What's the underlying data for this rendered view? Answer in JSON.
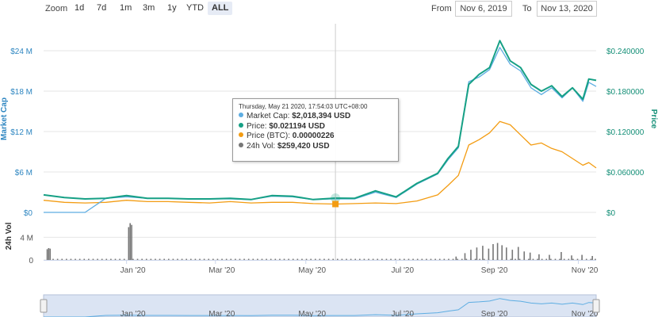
{
  "toolbar": {
    "zoom_label": "Zoom",
    "zoom_buttons": [
      "1d",
      "7d",
      "1m",
      "3m",
      "1y",
      "YTD",
      "ALL"
    ],
    "active_zoom": "ALL",
    "from_label": "From",
    "from_value": "Nov 6, 2019",
    "to_label": "To",
    "to_value": "Nov 13, 2020"
  },
  "tooltip": {
    "header": "Thursday, May 21 2020, 17:54:03 UTC+08:00",
    "rows": [
      {
        "label": "Market Cap:",
        "value": "$2,018,394 USD"
      },
      {
        "label": "Price:",
        "value": "$0.021194 USD"
      },
      {
        "label": "Price (BTC):",
        "value": "0.00000226"
      },
      {
        "label": "24h Vol:",
        "value": "$259,420 USD"
      }
    ]
  },
  "colors": {
    "market_cap": "#5dade2",
    "price": "#16a085",
    "price_btc": "#f39c12",
    "volume": "#777777",
    "navigator_fill": "#dbe4f3"
  },
  "chart_data": {
    "type": "line",
    "x_tick_labels": [
      "Jan '20",
      "Mar '20",
      "May '20",
      "Jul '20",
      "Sep '20",
      "Nov '20"
    ],
    "nav_tick_labels": [
      "Jan '20",
      "Mar '20",
      "May '20",
      "Jul '20",
      "Sep '20",
      "Nov '20"
    ],
    "x": [
      "2019-11-06",
      "2019-11-20",
      "2019-12-04",
      "2019-12-18",
      "2020-01-01",
      "2020-01-15",
      "2020-01-29",
      "2020-02-12",
      "2020-02-26",
      "2020-03-11",
      "2020-03-25",
      "2020-04-08",
      "2020-04-22",
      "2020-05-06",
      "2020-05-21",
      "2020-06-03",
      "2020-06-17",
      "2020-07-01",
      "2020-07-15",
      "2020-07-29",
      "2020-08-05",
      "2020-08-12",
      "2020-08-19",
      "2020-08-26",
      "2020-09-02",
      "2020-09-09",
      "2020-09-16",
      "2020-09-23",
      "2020-09-30",
      "2020-10-07",
      "2020-10-14",
      "2020-10-21",
      "2020-10-28",
      "2020-11-04",
      "2020-11-08",
      "2020-11-13"
    ],
    "series": [
      {
        "name": "Market Cap",
        "axis": "left",
        "values": [
          0,
          0,
          0,
          2.1,
          2.3,
          2.1,
          2.1,
          2.0,
          2.0,
          2.0,
          1.9,
          2.4,
          2.3,
          1.9,
          2.02,
          2.0,
          3.0,
          2.2,
          4.2,
          5.7,
          7.8,
          9.6,
          19.4,
          20.1,
          21.2,
          24.5,
          22.0,
          21.0,
          18.5,
          17.5,
          18.5,
          17.0,
          18.5,
          16.5,
          19.3,
          18.7
        ]
      },
      {
        "name": "Price",
        "axis": "right",
        "values": [
          0.026,
          0.022,
          0.02,
          0.021,
          0.025,
          0.021,
          0.021,
          0.02,
          0.02,
          0.021,
          0.019,
          0.025,
          0.024,
          0.019,
          0.021194,
          0.021,
          0.032,
          0.023,
          0.043,
          0.058,
          0.08,
          0.098,
          0.19,
          0.205,
          0.215,
          0.255,
          0.225,
          0.215,
          0.19,
          0.18,
          0.188,
          0.172,
          0.185,
          0.168,
          0.198,
          0.196
        ]
      },
      {
        "name": "Price (BTC)",
        "axis": "right",
        "values": [
          0.018,
          0.015,
          0.014,
          0.015,
          0.018,
          0.016,
          0.016,
          0.015,
          0.014,
          0.016,
          0.014,
          0.015,
          0.015,
          0.013,
          0.0124,
          0.013,
          0.014,
          0.013,
          0.017,
          0.026,
          0.04,
          0.055,
          0.1,
          0.108,
          0.118,
          0.135,
          0.13,
          0.115,
          0.1,
          0.103,
          0.095,
          0.09,
          0.08,
          0.07,
          0.074,
          0.066
        ]
      }
    ],
    "left_axis": {
      "label": "Market Cap",
      "ticks": [
        "$0",
        "$6 M",
        "$12 M",
        "$18 M",
        "$24 M"
      ],
      "range": [
        0,
        28
      ]
    },
    "right_axis": {
      "label": "Price",
      "ticks": [
        "$0",
        "$0.060000",
        "$0.120000",
        "$0.180000",
        "$0.240000"
      ],
      "range": [
        0,
        0.28
      ]
    },
    "volume": {
      "label": "24h Vol",
      "ticks": [
        "0",
        "4 M"
      ],
      "range": [
        0,
        7
      ],
      "bars": [
        {
          "x": "2019-11-08",
          "value": 1.9
        },
        {
          "x": "2019-11-09",
          "value": 2.1
        },
        {
          "x": "2019-11-10",
          "value": 2.0
        },
        {
          "x": "2020-01-02",
          "value": 5.8
        },
        {
          "x": "2020-01-03",
          "value": 6.5
        },
        {
          "x": "2020-01-04",
          "value": 6.2
        },
        {
          "x": "2020-08-10",
          "value": 0.6
        },
        {
          "x": "2020-08-16",
          "value": 1.2
        },
        {
          "x": "2020-08-20",
          "value": 1.8
        },
        {
          "x": "2020-08-24",
          "value": 2.2
        },
        {
          "x": "2020-08-28",
          "value": 2.5
        },
        {
          "x": "2020-09-01",
          "value": 2.0
        },
        {
          "x": "2020-09-04",
          "value": 2.8
        },
        {
          "x": "2020-09-07",
          "value": 3.0
        },
        {
          "x": "2020-09-10",
          "value": 2.6
        },
        {
          "x": "2020-09-13",
          "value": 2.2
        },
        {
          "x": "2020-09-17",
          "value": 1.8
        },
        {
          "x": "2020-09-21",
          "value": 2.3
        },
        {
          "x": "2020-09-25",
          "value": 1.5
        },
        {
          "x": "2020-09-29",
          "value": 1.3
        },
        {
          "x": "2020-10-05",
          "value": 1.0
        },
        {
          "x": "2020-10-12",
          "value": 0.9
        },
        {
          "x": "2020-10-20",
          "value": 1.4
        },
        {
          "x": "2020-10-27",
          "value": 0.8
        },
        {
          "x": "2020-11-03",
          "value": 0.9
        },
        {
          "x": "2020-11-10",
          "value": 0.7
        }
      ],
      "baseline_value": 0.2
    },
    "grid": true,
    "crosshair_x": "2020-05-21"
  }
}
